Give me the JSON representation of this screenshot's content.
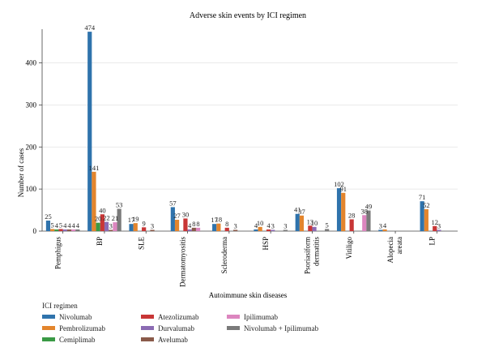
{
  "chart_data": {
    "type": "bar",
    "title": "Adverse skin events by ICI regimen",
    "xlabel": "Autoimmune skin diseases",
    "ylabel": "Number of cases",
    "ylim": [
      0,
      480
    ],
    "yticks": [
      0,
      100,
      200,
      300,
      400
    ],
    "grid": true,
    "legend_placement": "bottom-left",
    "legend_title": "ICI regimen",
    "categories": [
      "Pemphigus",
      "BP",
      "SLE",
      "Dermatomyositis",
      "Scleroderma",
      "HSP",
      "Psoriasiform dermatitis",
      "Vitiligo",
      "Alopecia areata",
      "LP"
    ],
    "series": [
      {
        "name": "Nivolumab",
        "color": "#2f73ac",
        "values": [
          25,
          474,
          17,
          57,
          17,
          4,
          41,
          102,
          3,
          71
        ]
      },
      {
        "name": "Pembrolizumab",
        "color": "#e3852d",
        "values": [
          5,
          141,
          19,
          27,
          18,
          10,
          37,
          91,
          4,
          52
        ]
      },
      {
        "name": "Cemiplimab",
        "color": "#3a9a45",
        "values": [
          4,
          20,
          null,
          null,
          null,
          null,
          null,
          null,
          null,
          null
        ]
      },
      {
        "name": "Atezolizumab",
        "color": "#c83636",
        "values": [
          5,
          40,
          9,
          30,
          8,
          4,
          13,
          28,
          null,
          12
        ]
      },
      {
        "name": "Durvalumab",
        "color": "#8b6bb3",
        "values": [
          4,
          22,
          null,
          4,
          null,
          3,
          10,
          null,
          null,
          3
        ]
      },
      {
        "name": "Avelumab",
        "color": "#8a5a4a",
        "values": [
          4,
          3,
          3,
          8,
          3,
          null,
          null,
          null,
          null,
          null
        ]
      },
      {
        "name": "Ipilimumab",
        "color": "#dc86bf",
        "values": [
          4,
          21,
          null,
          8,
          null,
          null,
          null,
          38,
          null,
          null
        ]
      },
      {
        "name": "Nivolumab + Ipilimumab",
        "color": "#7a7a7a",
        "values": [
          4,
          53,
          null,
          null,
          null,
          3,
          5,
          49,
          null,
          null
        ]
      }
    ]
  }
}
